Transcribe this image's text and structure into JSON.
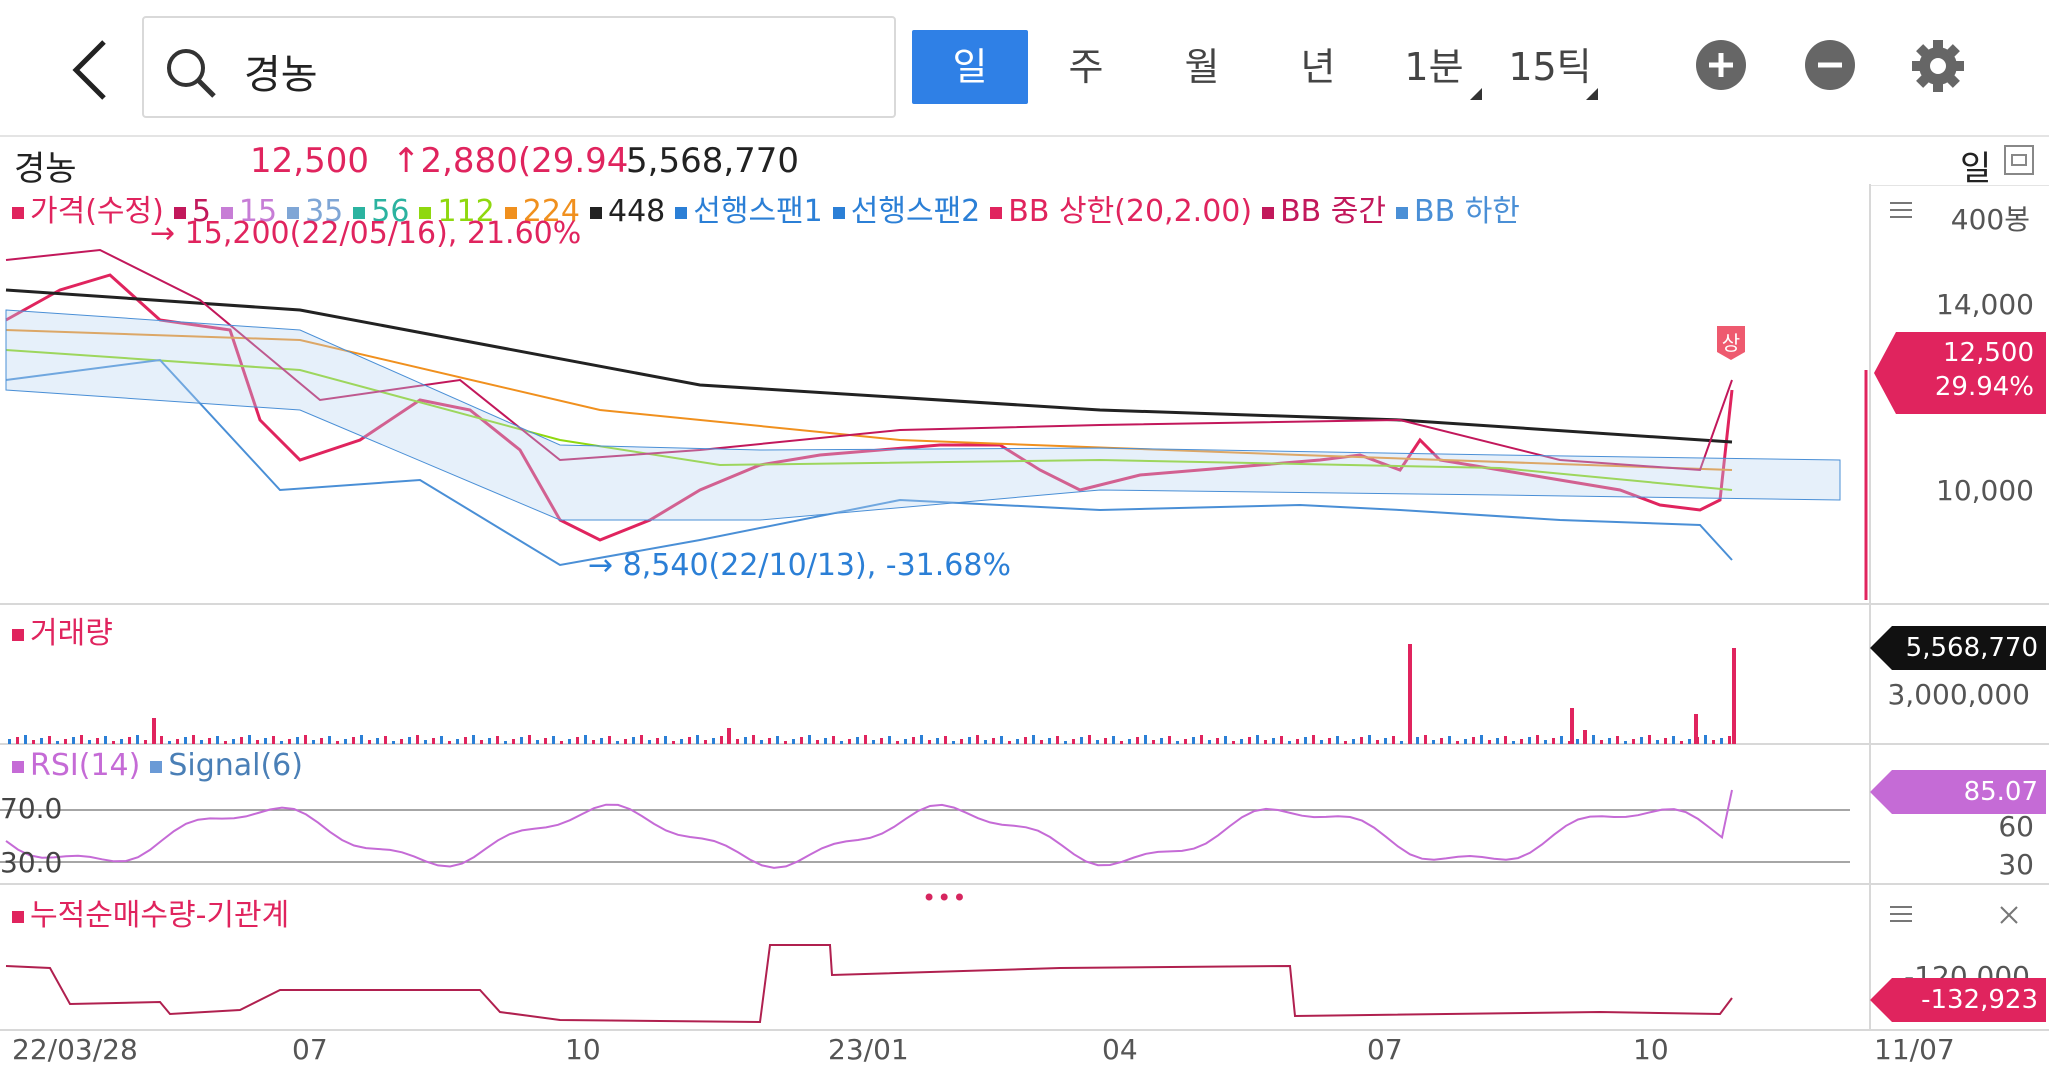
{
  "header": {
    "search_query": "경농",
    "periods": [
      {
        "label": "일",
        "active": true
      },
      {
        "label": "주",
        "active": false
      },
      {
        "label": "월",
        "active": false
      },
      {
        "label": "년",
        "active": false
      },
      {
        "label": "1분",
        "active": false
      },
      {
        "label": "15틱",
        "active": false
      }
    ]
  },
  "info": {
    "name": "경농",
    "price": "12,500",
    "change": "↑2,880(29.94",
    "volume": "5,568,770",
    "period": "일"
  },
  "main_legend": {
    "items": [
      {
        "label": "가격(수정)",
        "color": "#e0245e"
      },
      {
        "label": "5",
        "color": "#c2185b"
      },
      {
        "label": "15",
        "color": "#c77dd6"
      },
      {
        "label": "35",
        "color": "#7fa6d6"
      },
      {
        "label": "56",
        "color": "#2bb3a0"
      },
      {
        "label": "112",
        "color": "#8fd80f"
      },
      {
        "label": "224",
        "color": "#f0901e"
      },
      {
        "label": "448",
        "color": "#222222"
      },
      {
        "label": "선행스팬1",
        "color": "#2b7fd6"
      },
      {
        "label": "선행스팬2",
        "color": "#2b7fd6"
      },
      {
        "label": "BB 상한(20,2.00)",
        "color": "#e0245e"
      },
      {
        "label": "BB 중간",
        "color": "#c2185b"
      },
      {
        "label": "BB 하한",
        "color": "#4a8fd6"
      }
    ],
    "max_note": "→ 15,200(22/05/16), 21.60%",
    "min_note": "→ 8,540(22/10/13), -31.68%"
  },
  "price_axis": {
    "unit": "400봉",
    "ticks": [
      "14,000",
      "10,000"
    ],
    "current_price": "12,500",
    "current_pct": "29.94%",
    "upper_limit_badge": "상"
  },
  "volume_panel": {
    "title": "거래량",
    "current": "5,568,770",
    "tick": "3,000,000"
  },
  "rsi_panel": {
    "legend_rsi": "RSI(14)",
    "legend_signal": "Signal(6)",
    "level_high": "70.0",
    "level_low": "30.0",
    "axis_high": "60",
    "axis_low": "30",
    "current": "85.07",
    "more": "•••"
  },
  "inst_panel": {
    "title": "누적순매수량-기관계",
    "tick": "-120,000",
    "current": "-132,923"
  },
  "x_axis": {
    "dates": [
      "22/03/28",
      "07",
      "10",
      "23/01",
      "04",
      "07",
      "10",
      "11/07"
    ]
  },
  "colors": {
    "accent": "#2f80e6",
    "up": "#e0245e",
    "down": "#2b7fd6",
    "rsi": "#c56bd6"
  }
}
